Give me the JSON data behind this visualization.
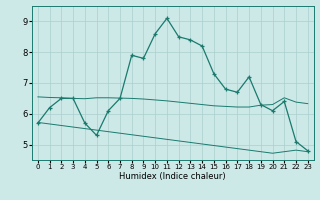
{
  "title": "",
  "xlabel": "Humidex (Indice chaleur)",
  "x_values": [
    0,
    1,
    2,
    3,
    4,
    5,
    6,
    7,
    8,
    9,
    10,
    11,
    12,
    13,
    14,
    15,
    16,
    17,
    18,
    19,
    20,
    21,
    22,
    23
  ],
  "main_line": [
    5.7,
    6.2,
    6.5,
    6.5,
    5.7,
    5.3,
    6.1,
    6.5,
    7.9,
    7.8,
    8.6,
    9.1,
    8.5,
    8.4,
    8.2,
    7.3,
    6.8,
    6.7,
    7.2,
    6.3,
    6.1,
    6.4,
    5.1,
    4.8
  ],
  "upper_line": [
    6.55,
    6.53,
    6.52,
    6.5,
    6.49,
    6.52,
    6.52,
    6.51,
    6.5,
    6.48,
    6.45,
    6.42,
    6.38,
    6.34,
    6.3,
    6.26,
    6.24,
    6.22,
    6.22,
    6.28,
    6.3,
    6.52,
    6.38,
    6.33
  ],
  "lower_line": [
    5.72,
    5.67,
    5.62,
    5.57,
    5.52,
    5.47,
    5.42,
    5.37,
    5.32,
    5.27,
    5.22,
    5.17,
    5.12,
    5.07,
    5.02,
    4.97,
    4.92,
    4.87,
    4.82,
    4.77,
    4.72,
    4.77,
    4.82,
    4.77
  ],
  "line_color": "#1a7a6e",
  "bg_color": "#cce9e7",
  "grid_color": "#aacfcc",
  "ylim": [
    4.5,
    9.5
  ],
  "xlim": [
    -0.5,
    23.5
  ],
  "yticks": [
    5,
    6,
    7,
    8,
    9
  ],
  "xticks": [
    0,
    1,
    2,
    3,
    4,
    5,
    6,
    7,
    8,
    9,
    10,
    11,
    12,
    13,
    14,
    15,
    16,
    17,
    18,
    19,
    20,
    21,
    22,
    23
  ],
  "xlabel_fontsize": 6.0,
  "tick_fontsize_x": 5.0,
  "tick_fontsize_y": 6.0
}
